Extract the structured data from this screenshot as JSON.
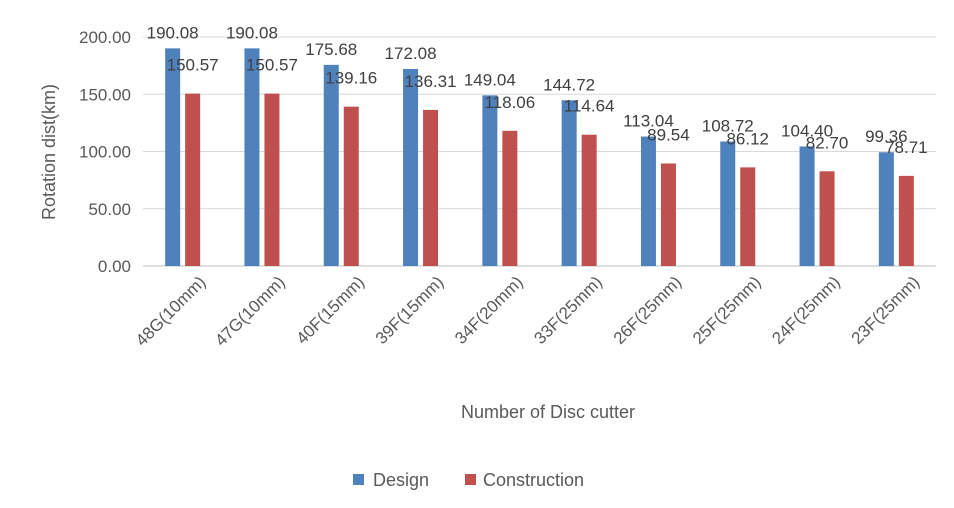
{
  "chart_data": {
    "type": "bar",
    "title": "",
    "xlabel": "Number  of Disc cutter",
    "ylabel": "Rotation dist(km)",
    "ylim": [
      0,
      200
    ],
    "yticks": [
      "0.00",
      "50.00",
      "100.00",
      "150.00",
      "200.00"
    ],
    "grid": true,
    "legend_position": "bottom",
    "categories": [
      "48G(10mm)",
      "47G(10mm)",
      "40F(15mm)",
      "39F(15mm)",
      "34F(20mm)",
      "33F(25mm)",
      "26F(25mm)",
      "25F(25mm)",
      "24F(25mm)",
      "23F(25mm)"
    ],
    "series": [
      {
        "name": "Design",
        "color": "#4f81bd",
        "values": [
          190.08,
          190.08,
          175.68,
          172.08,
          149.04,
          144.72,
          113.04,
          108.72,
          104.4,
          99.36
        ],
        "labels": [
          "190.08",
          "190.08",
          "175.68",
          "172.08",
          "149.04",
          "144.72",
          "113.04",
          "108.72",
          "104.40",
          "99.36"
        ]
      },
      {
        "name": "Construction",
        "color": "#c0504d",
        "values": [
          150.57,
          150.57,
          139.16,
          136.31,
          118.06,
          114.64,
          89.54,
          86.12,
          82.7,
          78.71
        ],
        "labels": [
          "150.57",
          "150.57",
          "139.16",
          "136.31",
          "118.06",
          "114.64",
          "89.54",
          "86.12",
          "82.70",
          "78.71"
        ]
      }
    ]
  }
}
